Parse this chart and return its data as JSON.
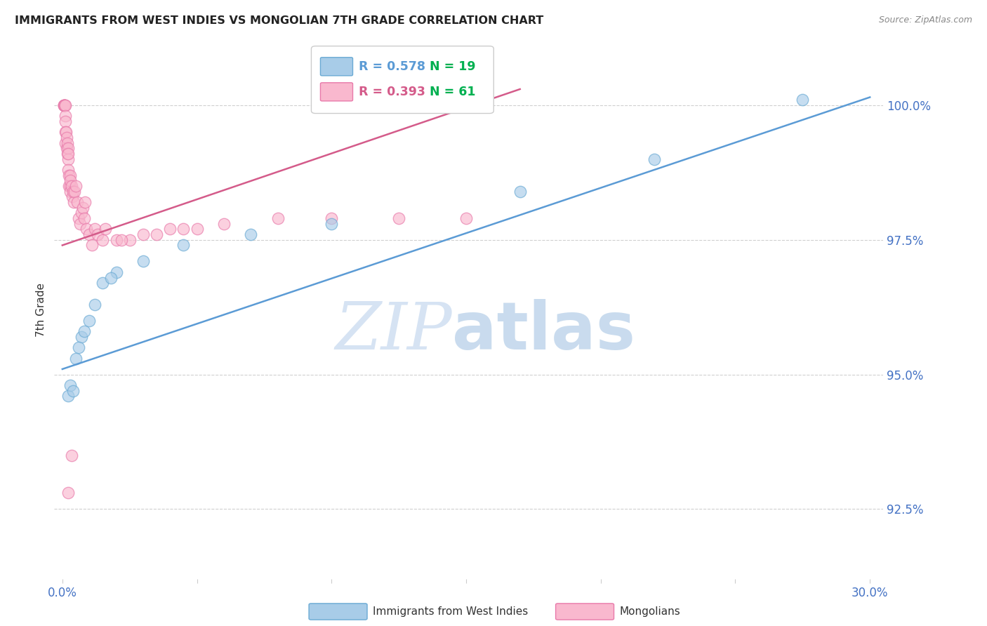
{
  "title": "IMMIGRANTS FROM WEST INDIES VS MONGOLIAN 7TH GRADE CORRELATION CHART",
  "source": "Source: ZipAtlas.com",
  "ylabel": "7th Grade",
  "xlim": [
    -0.3,
    30.5
  ],
  "ylim": [
    91.2,
    101.2
  ],
  "yticks": [
    92.5,
    95.0,
    97.5,
    100.0
  ],
  "ytick_labels": [
    "92.5%",
    "95.0%",
    "97.5%",
    "100.0%"
  ],
  "xticks": [
    0.0,
    5.0,
    10.0,
    15.0,
    20.0,
    25.0,
    30.0
  ],
  "xtick_labels": [
    "0.0%",
    "",
    "",
    "",
    "",
    "",
    "30.0%"
  ],
  "legend_blue_r": "R = 0.578",
  "legend_blue_n": "N = 19",
  "legend_pink_r": "R = 0.393",
  "legend_pink_n": "N = 61",
  "blue_scatter_color": "#a8cce8",
  "blue_scatter_edge": "#6aaad4",
  "pink_scatter_color": "#f9b8ce",
  "pink_scatter_edge": "#e87aaa",
  "blue_line_color": "#5b9bd5",
  "pink_line_color": "#d45b8a",
  "legend_n_color": "#00b050",
  "watermark_zip_color": "#c5d8ee",
  "watermark_atlas_color": "#9dbfe0",
  "axis_color": "#4472c4",
  "blue_x": [
    0.2,
    0.3,
    0.5,
    0.7,
    0.8,
    1.0,
    1.5,
    2.0,
    3.0,
    4.5,
    7.0,
    10.0,
    17.0,
    22.0,
    27.5,
    0.4,
    0.6,
    1.2,
    1.8
  ],
  "blue_y": [
    94.6,
    94.8,
    95.3,
    95.7,
    95.8,
    96.0,
    96.7,
    96.9,
    97.1,
    97.4,
    97.6,
    97.8,
    98.4,
    99.0,
    100.1,
    94.7,
    95.5,
    96.3,
    96.8
  ],
  "pink_x": [
    0.05,
    0.05,
    0.06,
    0.08,
    0.08,
    0.09,
    0.1,
    0.1,
    0.1,
    0.12,
    0.12,
    0.13,
    0.15,
    0.15,
    0.18,
    0.18,
    0.2,
    0.2,
    0.22,
    0.22,
    0.25,
    0.25,
    0.28,
    0.28,
    0.3,
    0.3,
    0.35,
    0.38,
    0.4,
    0.42,
    0.45,
    0.5,
    0.55,
    0.6,
    0.65,
    0.7,
    0.75,
    0.8,
    0.85,
    0.9,
    1.0,
    1.1,
    1.2,
    1.3,
    1.5,
    1.6,
    2.0,
    2.5,
    3.0,
    4.0,
    5.0,
    6.0,
    8.0,
    10.0,
    12.5,
    15.0,
    3.5,
    4.5,
    2.2,
    0.22,
    0.35
  ],
  "pink_y": [
    100.0,
    100.0,
    100.0,
    100.0,
    100.0,
    100.0,
    100.0,
    99.8,
    99.7,
    99.5,
    99.3,
    99.5,
    99.4,
    99.2,
    99.3,
    99.1,
    99.2,
    99.0,
    99.1,
    98.8,
    98.7,
    98.5,
    98.7,
    98.5,
    98.4,
    98.6,
    98.5,
    98.3,
    98.4,
    98.2,
    98.4,
    98.5,
    98.2,
    97.9,
    97.8,
    98.0,
    98.1,
    97.9,
    98.2,
    97.7,
    97.6,
    97.4,
    97.7,
    97.6,
    97.5,
    97.7,
    97.5,
    97.5,
    97.6,
    97.7,
    97.7,
    97.8,
    97.9,
    97.9,
    97.9,
    97.9,
    97.6,
    97.7,
    97.5,
    92.8,
    93.5
  ],
  "blue_trend_x": [
    0.0,
    30.0
  ],
  "blue_trend_y": [
    95.1,
    100.15
  ],
  "pink_trend_x": [
    0.0,
    17.0
  ],
  "pink_trend_y": [
    97.4,
    100.3
  ]
}
